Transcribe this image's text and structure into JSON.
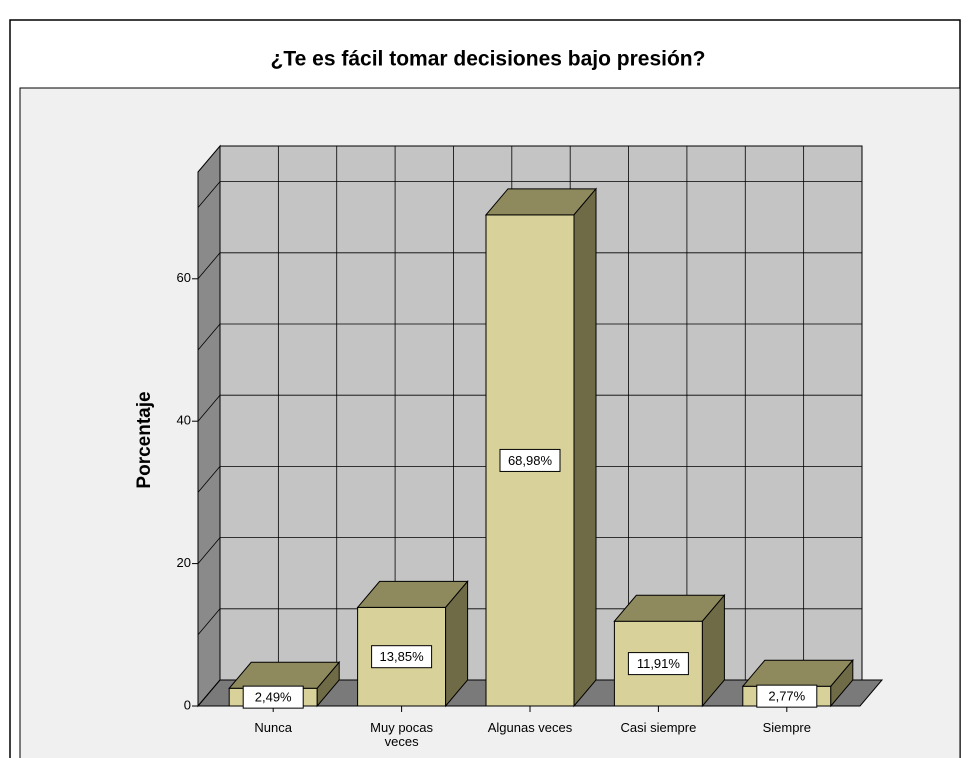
{
  "chart_data": {
    "type": "bar3d",
    "title": "¿Te es fácil tomar decisiones bajo presión?",
    "y_label": "Porcentaje",
    "categories": [
      "Nunca",
      "Muy pocas veces",
      "Algunas veces",
      "Casi siempre",
      "Siempre"
    ],
    "values": [
      2.49,
      13.85,
      68.98,
      11.91,
      2.77
    ],
    "value_labels": [
      "2,49%",
      "13,85%",
      "68,98%",
      "11,91%",
      "2,77%"
    ],
    "color": "#d8d19a",
    "ylim": [
      0,
      75
    ],
    "yticks": [
      0,
      20,
      40,
      60
    ],
    "grid_yticks": [
      0,
      10,
      20,
      30,
      40,
      50,
      60,
      70
    ],
    "grid": true
  }
}
